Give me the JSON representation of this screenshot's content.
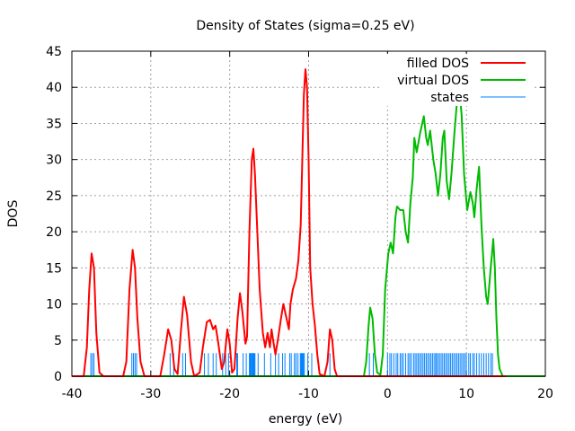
{
  "chart_data": {
    "type": "line",
    "title": "Density of States (sigma=0.25 eV)",
    "xlabel": "energy (eV)",
    "ylabel": "DOS",
    "xlim": [
      -40,
      20
    ],
    "ylim": [
      0,
      45
    ],
    "xticks": [
      -40,
      -30,
      -20,
      -10,
      0,
      10,
      20
    ],
    "yticks": [
      0,
      5,
      10,
      15,
      20,
      25,
      30,
      35,
      40,
      45
    ],
    "grid": true,
    "legend_position": "top-right",
    "series": [
      {
        "name": "filled DOS",
        "color": "#ff0000",
        "points": [
          [
            -40,
            0
          ],
          [
            -38.5,
            0
          ],
          [
            -38.1,
            4
          ],
          [
            -37.8,
            12
          ],
          [
            -37.5,
            17
          ],
          [
            -37.2,
            15
          ],
          [
            -36.9,
            6
          ],
          [
            -36.5,
            0.5
          ],
          [
            -36,
            0
          ],
          [
            -33.5,
            0
          ],
          [
            -33.1,
            2
          ],
          [
            -32.7,
            12
          ],
          [
            -32.3,
            17.5
          ],
          [
            -32.0,
            15
          ],
          [
            -31.7,
            8
          ],
          [
            -31.3,
            2
          ],
          [
            -30.8,
            0
          ],
          [
            -28.8,
            0
          ],
          [
            -28.3,
            3
          ],
          [
            -27.8,
            6.5
          ],
          [
            -27.4,
            5
          ],
          [
            -27.0,
            1
          ],
          [
            -26.6,
            0.3
          ],
          [
            -26.2,
            6
          ],
          [
            -25.8,
            11
          ],
          [
            -25.4,
            8.5
          ],
          [
            -24.9,
            2
          ],
          [
            -24.5,
            0
          ],
          [
            -23.8,
            0.5
          ],
          [
            -23.4,
            4
          ],
          [
            -22.9,
            7.5
          ],
          [
            -22.5,
            7.8
          ],
          [
            -22.1,
            6.5
          ],
          [
            -21.8,
            7
          ],
          [
            -21.5,
            5
          ],
          [
            -21.0,
            1
          ],
          [
            -20.7,
            2
          ],
          [
            -20.3,
            6.5
          ],
          [
            -20.0,
            4.5
          ],
          [
            -19.7,
            0.5
          ],
          [
            -19.4,
            1
          ],
          [
            -19.0,
            8
          ],
          [
            -18.7,
            11.5
          ],
          [
            -18.4,
            9
          ],
          [
            -18.0,
            4.5
          ],
          [
            -17.8,
            5.5
          ],
          [
            -17.5,
            20
          ],
          [
            -17.2,
            30
          ],
          [
            -17.0,
            31.5
          ],
          [
            -16.8,
            28
          ],
          [
            -16.5,
            20
          ],
          [
            -16.2,
            12
          ],
          [
            -15.8,
            6
          ],
          [
            -15.5,
            4
          ],
          [
            -15.2,
            6
          ],
          [
            -14.9,
            4
          ],
          [
            -14.7,
            6.5
          ],
          [
            -14.5,
            5
          ],
          [
            -14.2,
            3
          ],
          [
            -13.9,
            5
          ],
          [
            -13.5,
            8
          ],
          [
            -13.2,
            10
          ],
          [
            -12.8,
            8
          ],
          [
            -12.5,
            6.5
          ],
          [
            -12.3,
            10
          ],
          [
            -12.0,
            12
          ],
          [
            -11.6,
            13.5
          ],
          [
            -11.3,
            16
          ],
          [
            -11.0,
            21
          ],
          [
            -10.8,
            30
          ],
          [
            -10.6,
            39
          ],
          [
            -10.4,
            42.5
          ],
          [
            -10.2,
            40
          ],
          [
            -10.0,
            30
          ],
          [
            -9.8,
            15
          ],
          [
            -9.5,
            10
          ],
          [
            -9.2,
            7
          ],
          [
            -8.9,
            3
          ],
          [
            -8.6,
            0.3
          ],
          [
            -8.0,
            0
          ],
          [
            -7.6,
            2
          ],
          [
            -7.3,
            6.5
          ],
          [
            -7.0,
            5
          ],
          [
            -6.7,
            1
          ],
          [
            -6.4,
            0
          ],
          [
            15,
            0
          ]
        ]
      },
      {
        "name": "virtual DOS",
        "color": "#00bb00",
        "points": [
          [
            -40,
            0
          ],
          [
            -3.0,
            0
          ],
          [
            -2.7,
            2
          ],
          [
            -2.4,
            7
          ],
          [
            -2.2,
            9.5
          ],
          [
            -1.9,
            8
          ],
          [
            -1.6,
            3
          ],
          [
            -1.3,
            0.5
          ],
          [
            -0.9,
            0.2
          ],
          [
            -0.6,
            3
          ],
          [
            -0.3,
            12
          ],
          [
            0.1,
            17
          ],
          [
            0.4,
            18.5
          ],
          [
            0.7,
            17
          ],
          [
            1.0,
            22
          ],
          [
            1.2,
            23.5
          ],
          [
            1.6,
            23
          ],
          [
            2.0,
            23
          ],
          [
            2.3,
            20
          ],
          [
            2.6,
            18.5
          ],
          [
            2.9,
            24
          ],
          [
            3.2,
            27.5
          ],
          [
            3.4,
            33
          ],
          [
            3.7,
            31
          ],
          [
            4.1,
            33.5
          ],
          [
            4.6,
            36
          ],
          [
            4.9,
            33
          ],
          [
            5.1,
            32
          ],
          [
            5.4,
            34
          ],
          [
            5.8,
            30
          ],
          [
            6.1,
            28
          ],
          [
            6.4,
            25
          ],
          [
            6.7,
            28
          ],
          [
            7.0,
            33
          ],
          [
            7.2,
            34
          ],
          [
            7.5,
            27
          ],
          [
            7.8,
            24.5
          ],
          [
            8.1,
            28
          ],
          [
            8.5,
            34
          ],
          [
            8.8,
            38
          ],
          [
            9.1,
            40
          ],
          [
            9.4,
            36
          ],
          [
            9.7,
            28
          ],
          [
            10.1,
            23
          ],
          [
            10.5,
            25.5
          ],
          [
            10.8,
            24
          ],
          [
            11.0,
            22
          ],
          [
            11.3,
            26
          ],
          [
            11.6,
            29
          ],
          [
            11.9,
            21
          ],
          [
            12.2,
            15
          ],
          [
            12.5,
            11
          ],
          [
            12.7,
            10
          ],
          [
            13.0,
            14
          ],
          [
            13.4,
            19
          ],
          [
            13.6,
            15
          ],
          [
            13.8,
            8
          ],
          [
            14.0,
            3
          ],
          [
            14.2,
            1
          ],
          [
            14.6,
            0
          ],
          [
            20,
            0
          ]
        ]
      },
      {
        "name": "states",
        "color": "#0080ff",
        "height": 3.2,
        "energies": [
          -37.6,
          -37.4,
          -37.2,
          -32.4,
          -32.2,
          -32.0,
          -31.8,
          -27.55,
          -27.1,
          -25.96,
          -25.6,
          -23.2,
          -22.7,
          -22.1,
          -21.7,
          -20.9,
          -20.5,
          -20.15,
          -19.1,
          -19.0,
          -18.3,
          -17.9,
          -17.5,
          -17.4,
          -17.3,
          -17.2,
          -17.1,
          -17.0,
          -16.9,
          -16.8,
          -16.4,
          -15.6,
          -14.8,
          -14.2,
          -13.8,
          -13.3,
          -13.0,
          -12.4,
          -12.2,
          -11.8,
          -11.6,
          -11.35,
          -11.05,
          -10.95,
          -10.85,
          -10.75,
          -10.65,
          -10.55,
          -10.1,
          -9.6,
          -7.3,
          -2.3,
          -1.8,
          0.0,
          0.3,
          0.5,
          0.8,
          1.1,
          1.3,
          1.6,
          1.8,
          2.0,
          2.3,
          2.6,
          2.8,
          3.0,
          3.3,
          3.5,
          3.7,
          3.9,
          4.1,
          4.3,
          4.5,
          4.7,
          4.9,
          5.1,
          5.3,
          5.5,
          5.7,
          5.9,
          6.1,
          6.2,
          6.4,
          6.6,
          6.8,
          7.0,
          7.2,
          7.4,
          7.6,
          7.8,
          8.0,
          8.2,
          8.4,
          8.6,
          8.8,
          9.0,
          9.2,
          9.4,
          9.6,
          9.8,
          10.0,
          10.3,
          10.5,
          10.8,
          11.0,
          11.3,
          11.6,
          11.9,
          12.2,
          12.5,
          12.8,
          13.1,
          13.3
        ]
      }
    ]
  }
}
